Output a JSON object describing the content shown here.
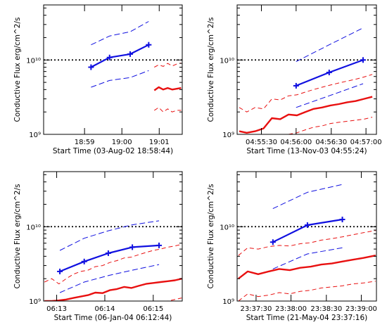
{
  "chart_data": [
    {
      "type": "line",
      "xlabel": "Start Time (03-Aug-02 18:58:44)",
      "ylabel": "Conductive Flux erg/cm^2/s",
      "y_scale": "log",
      "ylim": [
        1000000000.0,
        55000000000.0
      ],
      "xlim": [
        18.965,
        19.027
      ],
      "x_ticks": [
        18.9833,
        19.0,
        19.0167
      ],
      "x_tick_labels": [
        "18:59",
        "19:00",
        "19:01"
      ],
      "y_ticks": [
        1000000000.0,
        10000000000.0
      ],
      "y_tick_labels": [
        "10⁹",
        "10¹⁰"
      ],
      "threshold": 10000000000.0,
      "series": [
        {
          "role": "blue-main",
          "x": [
            18.9862,
            18.9945,
            19.0037,
            19.012
          ],
          "y": [
            8000000000.0,
            10800000000.0,
            12000000000.0,
            16000000000.0
          ]
        },
        {
          "role": "blue-upper",
          "x": [
            18.9862,
            18.9945,
            19.0037,
            19.012
          ],
          "y": [
            16000000000.0,
            21000000000.0,
            24000000000.0,
            33000000000.0
          ]
        },
        {
          "role": "blue-lower",
          "x": [
            18.9862,
            18.9945,
            19.0037,
            19.012
          ],
          "y": [
            4300000000.0,
            5300000000.0,
            5800000000.0,
            7200000000.0
          ]
        },
        {
          "role": "red-main",
          "x": [
            19.0145,
            19.0165,
            19.0185,
            19.0205,
            19.0225,
            19.0245,
            19.0265
          ],
          "y": [
            3900000000.0,
            4300000000.0,
            4000000000.0,
            4200000000.0,
            4000000000.0,
            4100000000.0,
            4200000000.0
          ]
        },
        {
          "role": "red-upper",
          "x": [
            19.0145,
            19.0165,
            19.0185,
            19.0205,
            19.0225,
            19.0245,
            19.0265
          ],
          "y": [
            8000000000.0,
            8600000000.0,
            8200000000.0,
            9000000000.0,
            8300000000.0,
            8800000000.0,
            9100000000.0
          ]
        },
        {
          "role": "red-lower",
          "x": [
            19.0145,
            19.0165,
            19.0185,
            19.0205,
            19.0225,
            19.0245,
            19.0265
          ],
          "y": [
            2100000000.0,
            2300000000.0,
            2000000000.0,
            2200000000.0,
            2000000000.0,
            2100000000.0,
            2100000000.0
          ]
        }
      ]
    },
    {
      "type": "line",
      "xlabel": "Start Time (13-Nov-03 04:55:24)",
      "ylabel": "Conductive Flux erg/cm^2/s",
      "y_scale": "log",
      "ylim": [
        1000000000.0,
        55000000000.0
      ],
      "xlim": [
        4.9192,
        4.9525
      ],
      "x_ticks": [
        4.925,
        4.9333,
        4.9417,
        4.95
      ],
      "x_tick_labels": [
        "04:55:30",
        "04:56:00",
        "04:56:30",
        "04:57:00"
      ],
      "y_ticks": [
        1000000000.0,
        10000000000.0
      ],
      "y_tick_labels": [
        "10⁹",
        "10¹⁰"
      ],
      "threshold": 10000000000.0,
      "series": [
        {
          "role": "blue-main",
          "x": [
            4.9333,
            4.9412,
            4.9493
          ],
          "y": [
            4500000000.0,
            6800000000.0,
            10000000000.0
          ]
        },
        {
          "role": "blue-upper",
          "x": [
            4.9333,
            4.9412,
            4.9493
          ],
          "y": [
            9500000000.0,
            16000000000.0,
            27000000000.0
          ]
        },
        {
          "role": "blue-lower",
          "x": [
            4.9333,
            4.9412,
            4.9493
          ],
          "y": [
            2300000000.0,
            3300000000.0,
            4800000000.0
          ]
        },
        {
          "role": "red-main",
          "x": [
            4.9197,
            4.9215,
            4.9235,
            4.9255,
            4.9275,
            4.9295,
            4.9315,
            4.9335,
            4.9355,
            4.9375,
            4.9395,
            4.9415,
            4.9435,
            4.9455,
            4.9475,
            4.9495,
            4.9515
          ],
          "y": [
            1100000000.0,
            1050000000.0,
            1100000000.0,
            1200000000.0,
            1650000000.0,
            1600000000.0,
            1850000000.0,
            1800000000.0,
            2000000000.0,
            2200000000.0,
            2300000000.0,
            2450000000.0,
            2550000000.0,
            2700000000.0,
            2800000000.0,
            3000000000.0,
            3200000000.0
          ]
        },
        {
          "role": "red-upper",
          "x": [
            4.9197,
            4.9215,
            4.9235,
            4.9255,
            4.9275,
            4.9295,
            4.9315,
            4.9335,
            4.9355,
            4.9375,
            4.9395,
            4.9415,
            4.9435,
            4.9455,
            4.9475,
            4.9495,
            4.9515
          ],
          "y": [
            2300000000.0,
            2000000000.0,
            2300000000.0,
            2200000000.0,
            3000000000.0,
            2900000000.0,
            3300000000.0,
            3400000000.0,
            3700000000.0,
            4000000000.0,
            4300000000.0,
            4600000000.0,
            4900000000.0,
            5200000000.0,
            5500000000.0,
            5900000000.0,
            6400000000.0
          ]
        },
        {
          "role": "red-lower",
          "x": [
            4.9197,
            4.9215,
            4.9235,
            4.9255,
            4.9275,
            4.9295,
            4.9315,
            4.9335,
            4.9355,
            4.9375,
            4.9395,
            4.9415,
            4.9435,
            4.9455,
            4.9475,
            4.9495,
            4.9515
          ],
          "y": [
            1000000000.0,
            1000000000.0,
            1000000000.0,
            1000000000.0,
            1000000000.0,
            1000000000.0,
            1000000000.0,
            1050000000.0,
            1150000000.0,
            1250000000.0,
            1300000000.0,
            1400000000.0,
            1450000000.0,
            1500000000.0,
            1550000000.0,
            1600000000.0,
            1700000000.0
          ]
        }
      ]
    },
    {
      "type": "line",
      "xlabel": "Start Time (06-Jan-04 06:12:44)",
      "ylabel": "Conductive Flux erg/cm^2/s",
      "y_scale": "log",
      "ylim": [
        1000000000.0,
        55000000000.0
      ],
      "xlim": [
        6.2122,
        6.26
      ],
      "x_ticks": [
        6.2167,
        6.2333,
        6.25
      ],
      "x_tick_labels": [
        "06:13",
        "06:14",
        "06:15"
      ],
      "y_ticks": [
        1000000000.0,
        10000000000.0
      ],
      "y_tick_labels": [
        "10⁹",
        "10¹⁰"
      ],
      "threshold": 10000000000.0,
      "series": [
        {
          "role": "blue-main",
          "x": [
            6.2178,
            6.2262,
            6.2345,
            6.2428,
            6.252
          ],
          "y": [
            2500000000.0,
            3400000000.0,
            4400000000.0,
            5300000000.0,
            5600000000.0
          ]
        },
        {
          "role": "blue-upper",
          "x": [
            6.2178,
            6.2262,
            6.2345,
            6.2428,
            6.252
          ],
          "y": [
            4800000000.0,
            7000000000.0,
            8800000000.0,
            10600000000.0,
            12000000000.0
          ]
        },
        {
          "role": "blue-lower",
          "x": [
            6.2178,
            6.2262,
            6.2345,
            6.2428,
            6.252
          ],
          "y": [
            1300000000.0,
            1800000000.0,
            2200000000.0,
            2600000000.0,
            3100000000.0
          ]
        },
        {
          "role": "red-main",
          "x": [
            6.2125,
            6.215,
            6.2175,
            6.22,
            6.2225,
            6.225,
            6.2275,
            6.23,
            6.2325,
            6.235,
            6.2375,
            6.24,
            6.2425,
            6.245,
            6.2475,
            6.25,
            6.2525,
            6.255,
            6.2575,
            6.2598
          ],
          "y": [
            1000000000.0,
            1000000000.0,
            1020000000.0,
            1050000000.0,
            1100000000.0,
            1150000000.0,
            1200000000.0,
            1300000000.0,
            1280000000.0,
            1400000000.0,
            1450000000.0,
            1550000000.0,
            1500000000.0,
            1600000000.0,
            1700000000.0,
            1750000000.0,
            1800000000.0,
            1850000000.0,
            1900000000.0,
            2000000000.0
          ]
        },
        {
          "role": "red-upper",
          "x": [
            6.2125,
            6.215,
            6.2175,
            6.22,
            6.2225,
            6.225,
            6.2275,
            6.23,
            6.2325,
            6.235,
            6.2375,
            6.24,
            6.2425,
            6.245,
            6.2475,
            6.25,
            6.2525,
            6.255,
            6.2575,
            6.2598
          ],
          "y": [
            1800000000.0,
            2000000000.0,
            1700000000.0,
            2000000000.0,
            2300000000.0,
            2500000000.0,
            2600000000.0,
            2900000000.0,
            3000000000.0,
            3300000000.0,
            3500000000.0,
            3800000000.0,
            3900000000.0,
            4200000000.0,
            4500000000.0,
            4800000000.0,
            5000000000.0,
            5300000000.0,
            5500000000.0,
            5800000000.0
          ]
        },
        {
          "role": "red-lower",
          "x": [
            6.2125,
            6.215,
            6.2175,
            6.22,
            6.2225,
            6.225,
            6.2275,
            6.23,
            6.2325,
            6.235,
            6.2375,
            6.24,
            6.2425,
            6.245,
            6.2475,
            6.25,
            6.2525,
            6.255,
            6.2575,
            6.2598
          ],
          "y": [
            1000000000.0,
            1000000000.0,
            1000000000.0,
            1000000000.0,
            1000000000.0,
            1000000000.0,
            1000000000.0,
            1000000000.0,
            1000000000.0,
            1000000000.0,
            1000000000.0,
            1000000000.0,
            1000000000.0,
            1000000000.0,
            1000000000.0,
            1000000000.0,
            1000000000.0,
            1000000000.0,
            1050000000.0,
            1100000000.0
          ]
        }
      ]
    },
    {
      "type": "line",
      "xlabel": "Start Time (21-May-04 23:37:16)",
      "ylabel": "Conductive Flux erg/cm^2/s",
      "y_scale": "log",
      "ylim": [
        1000000000.0,
        55000000000.0
      ],
      "xlim": [
        23.6205,
        23.6536
      ],
      "x_ticks": [
        23.625,
        23.6333,
        23.6417,
        23.65
      ],
      "x_tick_labels": [
        "23:37:30",
        "23:38:00",
        "23:38:30",
        "23:39:00"
      ],
      "y_ticks": [
        1000000000.0,
        10000000000.0
      ],
      "y_tick_labels": [
        "10⁹",
        "10¹⁰"
      ],
      "threshold": 10000000000.0,
      "series": [
        {
          "role": "blue-main",
          "x": [
            23.629,
            23.6372,
            23.6455
          ],
          "y": [
            6200000000.0,
            10500000000.0,
            12500000000.0
          ]
        },
        {
          "role": "blue-upper",
          "x": [
            23.629,
            23.6372,
            23.6455
          ],
          "y": [
            17500000000.0,
            29000000000.0,
            37000000000.0
          ]
        },
        {
          "role": "blue-lower",
          "x": [
            23.629,
            23.6372,
            23.6455
          ],
          "y": [
            2700000000.0,
            4300000000.0,
            5200000000.0
          ]
        },
        {
          "role": "red-main",
          "x": [
            23.6208,
            23.623,
            23.6255,
            23.628,
            23.6305,
            23.633,
            23.6355,
            23.638,
            23.6405,
            23.643,
            23.6455,
            23.648,
            23.6505,
            23.6534
          ],
          "y": [
            2000000000.0,
            2500000000.0,
            2300000000.0,
            2500000000.0,
            2700000000.0,
            2600000000.0,
            2800000000.0,
            2900000000.0,
            3100000000.0,
            3200000000.0,
            3400000000.0,
            3600000000.0,
            3800000000.0,
            4100000000.0
          ]
        },
        {
          "role": "red-upper",
          "x": [
            23.6208,
            23.623,
            23.6255,
            23.628,
            23.6305,
            23.633,
            23.6355,
            23.638,
            23.6405,
            23.643,
            23.6455,
            23.648,
            23.6505,
            23.6534
          ],
          "y": [
            4100000000.0,
            5200000000.0,
            5000000000.0,
            5400000000.0,
            5600000000.0,
            5500000000.0,
            5900000000.0,
            6100000000.0,
            6600000000.0,
            6900000000.0,
            7300000000.0,
            7800000000.0,
            8300000000.0,
            8900000000.0
          ]
        },
        {
          "role": "red-lower",
          "x": [
            23.6208,
            23.623,
            23.6255,
            23.628,
            23.6305,
            23.633,
            23.6355,
            23.638,
            23.6405,
            23.643,
            23.6455,
            23.648,
            23.6505,
            23.6534
          ],
          "y": [
            1000000000.0,
            1250000000.0,
            1150000000.0,
            1200000000.0,
            1300000000.0,
            1250000000.0,
            1350000000.0,
            1400000000.0,
            1500000000.0,
            1550000000.0,
            1600000000.0,
            1700000000.0,
            1750000000.0,
            1850000000.0
          ]
        }
      ]
    }
  ],
  "colors": {
    "blue": "#1010e0",
    "red": "#e81010",
    "threshold": "#000000",
    "frame": "#000000"
  }
}
